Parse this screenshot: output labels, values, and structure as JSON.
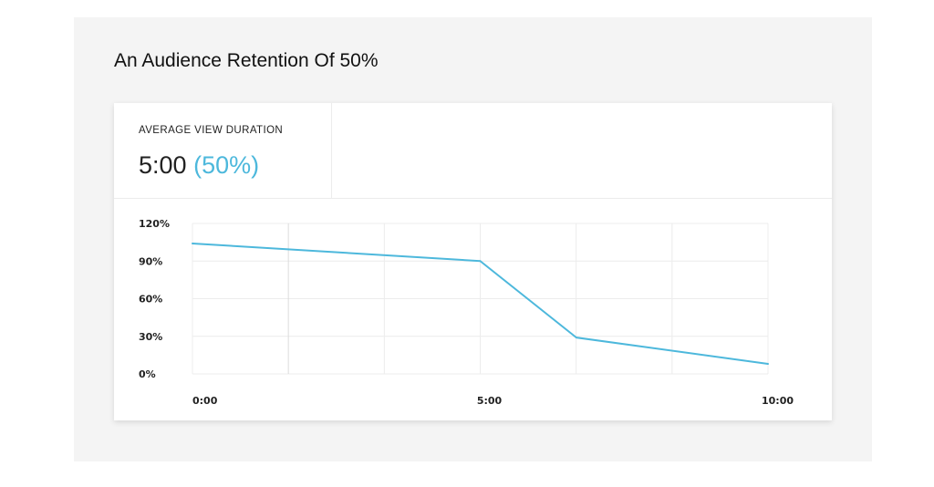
{
  "heading": "An Audience Retention Of 50%",
  "metric": {
    "label": "AVERAGE VIEW DURATION",
    "value": "5:00",
    "percent": "(50%)",
    "accent_color": "#4db8dc"
  },
  "chart_data": {
    "type": "line",
    "x_tick_labels": [
      "0:00",
      "5:00",
      "10:00"
    ],
    "x_ticks": [
      0,
      5,
      10
    ],
    "xlim": [
      0,
      10
    ],
    "y_tick_labels": [
      "120%",
      "90%",
      "60%",
      "30%",
      "0%"
    ],
    "y_ticks": [
      120,
      90,
      60,
      30,
      0
    ],
    "ylim": [
      0,
      120
    ],
    "grid": true,
    "series": [
      {
        "color": "#4db8dc",
        "x": [
          0,
          5,
          6.67,
          10
        ],
        "y": [
          104,
          90,
          29,
          8
        ]
      }
    ],
    "title": "",
    "xlabel": "",
    "ylabel": ""
  }
}
